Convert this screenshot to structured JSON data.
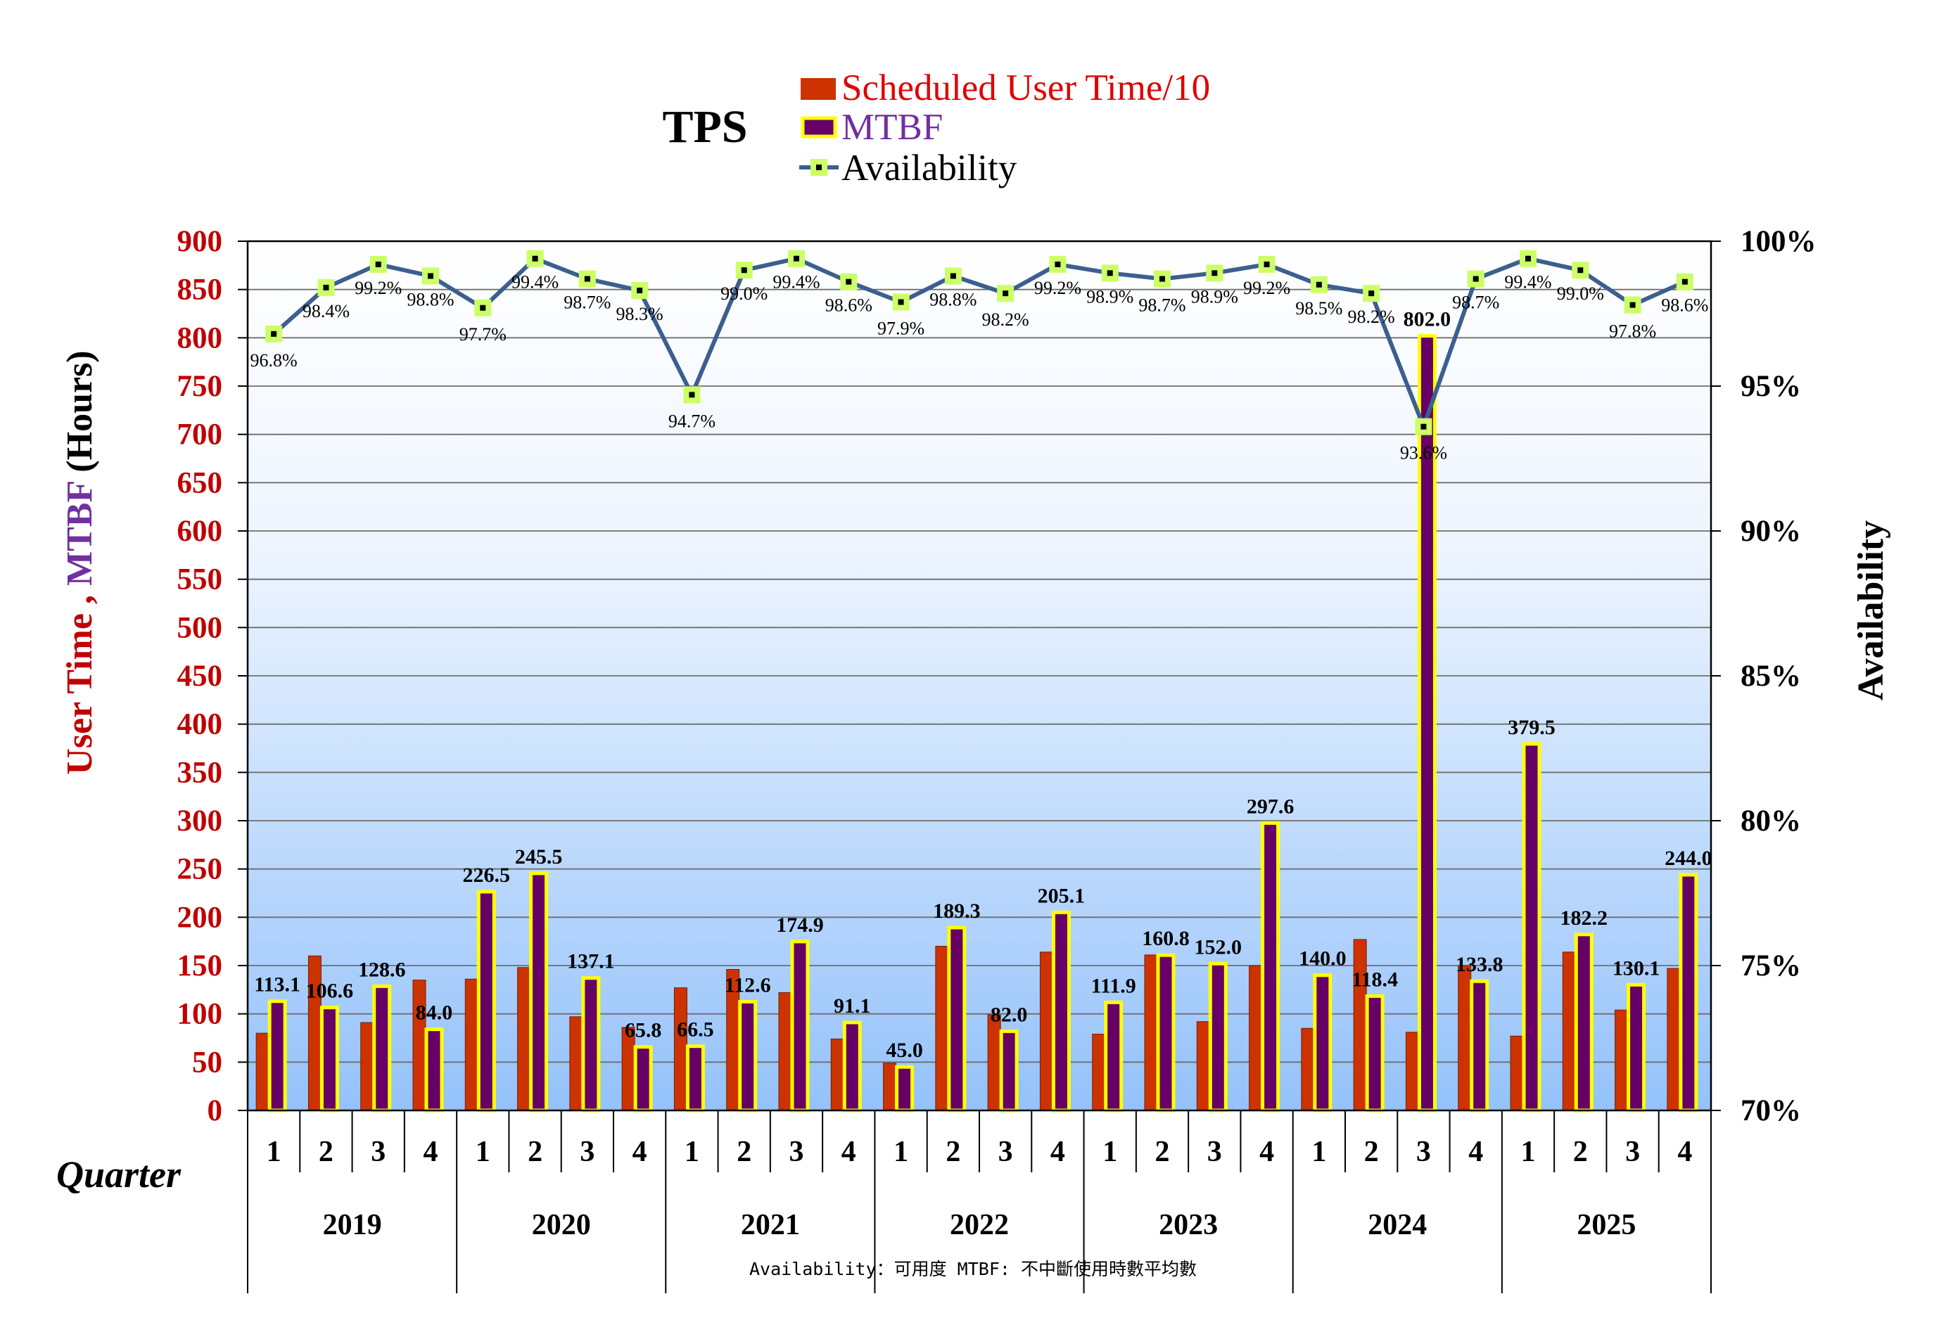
{
  "chart_data": {
    "type": "bar+line",
    "title": "TPS",
    "legend": {
      "placement": "top-center",
      "entries": [
        {
          "label": "Scheduled User Time/10",
          "color": "#cc3300",
          "text_color": "#e00000"
        },
        {
          "label": "MTBF",
          "color": "#660066",
          "border": "#ffff00",
          "text_color": "#7030a0"
        },
        {
          "label": "Availability",
          "color": "#3b5f8f",
          "marker": "#ccff66",
          "text_color": "#000000"
        }
      ]
    },
    "y_left": {
      "label_parts": [
        {
          "text": "User Time , ",
          "color": "#c00000"
        },
        {
          "text": "MTBF",
          "color": "#7030a0"
        },
        {
          "text": " (Hours)",
          "color": "#000000"
        }
      ],
      "range": [
        0,
        900
      ],
      "step": 50,
      "ticks": [
        "0",
        "50",
        "100",
        "150",
        "200",
        "250",
        "300",
        "350",
        "400",
        "450",
        "500",
        "550",
        "600",
        "650",
        "700",
        "750",
        "800",
        "850",
        "900"
      ]
    },
    "y_right": {
      "label": "Availability",
      "range": [
        70,
        100
      ],
      "step": 5,
      "ticks": [
        "70%",
        "75%",
        "80%",
        "85%",
        "90%",
        "95%",
        "100%"
      ]
    },
    "x_axis": {
      "label": "Quarter",
      "quarters": [
        "1",
        "2",
        "3",
        "4"
      ],
      "years": [
        "2019",
        "2020",
        "2021",
        "2022",
        "2023",
        "2024",
        "2025"
      ]
    },
    "grid": true,
    "series": [
      {
        "name": "Scheduled User Time/10",
        "kind": "bar",
        "values": [
          80,
          160,
          91,
          135,
          136,
          148,
          97,
          86,
          127,
          146,
          122,
          74,
          49,
          170,
          99,
          164,
          79,
          161,
          92,
          150,
          85,
          177,
          81,
          150,
          77,
          164,
          104,
          147
        ]
      },
      {
        "name": "MTBF",
        "kind": "bar",
        "values": [
          113.1,
          106.6,
          128.6,
          84.0,
          226.5,
          245.5,
          137.1,
          65.8,
          66.5,
          112.6,
          174.9,
          91.1,
          45.0,
          189.3,
          82.0,
          205.1,
          111.9,
          160.8,
          152.0,
          297.6,
          140.0,
          118.4,
          802.0,
          133.8,
          379.5,
          182.2,
          130.1,
          244.0
        ],
        "labels": [
          "113.1",
          "106.6",
          "128.6",
          "84.0",
          "226.5",
          "245.5",
          "137.1",
          "65.8",
          "66.5",
          "112.6",
          "174.9",
          "91.1",
          "45.0",
          "189.3",
          "82.0",
          "205.1",
          "111.9",
          "160.8",
          "152.0",
          "297.6",
          "140.0",
          "118.4",
          "802.0",
          "133.8",
          "379.5",
          "182.2",
          "130.1",
          "244.0"
        ]
      },
      {
        "name": "Availability",
        "kind": "line",
        "axis": "right",
        "values": [
          96.8,
          98.4,
          99.2,
          98.8,
          97.7,
          99.4,
          98.7,
          98.3,
          94.7,
          99.0,
          99.4,
          98.6,
          97.9,
          98.8,
          98.2,
          99.2,
          98.9,
          98.7,
          98.9,
          99.2,
          98.5,
          98.2,
          93.6,
          98.7,
          99.4,
          99.0,
          97.8,
          98.6
        ],
        "labels": [
          "96.8%",
          "98.4%",
          "99.2%",
          "98.8%",
          "97.7%",
          "99.4%",
          "98.7%",
          "98.3%",
          "94.7%",
          "99.0%",
          "99.4%",
          "98.6%",
          "97.9%",
          "98.8%",
          "98.2%",
          "99.2%",
          "98.9%",
          "98.7%",
          "98.9%",
          "99.2%",
          "98.5%",
          "98.2%",
          "93.6%",
          "98.7%",
          "99.4%",
          "99.0%",
          "97.8%",
          "98.6%"
        ]
      }
    ],
    "footer": "Availability：可用度  MTBF: 不中斷使用時數平均數"
  }
}
